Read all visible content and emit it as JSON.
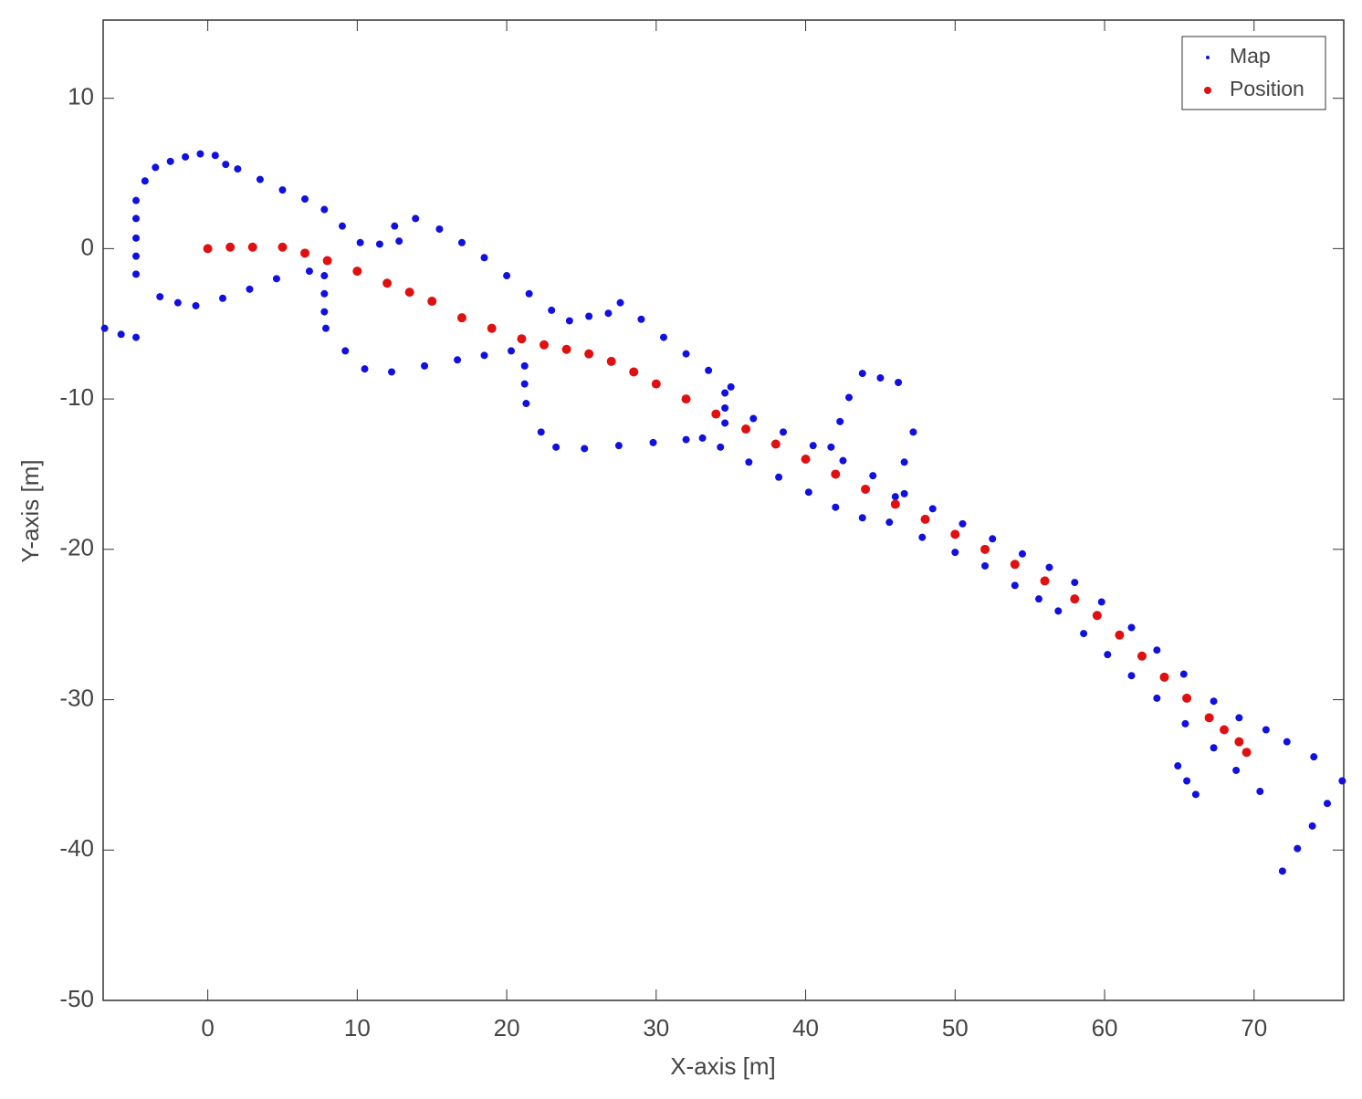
{
  "chart_data": {
    "type": "scatter",
    "x_label": "X-axis [m]",
    "y_label": "Y-axis [m]",
    "xlim": [
      -7,
      76
    ],
    "ylim": [
      -50,
      15.2
    ],
    "xticks": [
      0,
      10,
      20,
      30,
      40,
      50,
      60,
      70
    ],
    "yticks": [
      -50,
      -40,
      -30,
      -20,
      -10,
      0,
      10
    ],
    "grid": false,
    "legend": "top-right",
    "series": [
      {
        "name": "Map",
        "color": "#1010e0",
        "x": [
          -4.8,
          -4.8,
          -4.8,
          -4.8,
          -4.8,
          -4.2,
          -3.5,
          -2.5,
          -1.5,
          -0.5,
          0.5,
          1.2,
          2.0,
          3.5,
          5.0,
          6.5,
          7.8,
          9.0,
          10.2,
          11.5,
          12.8,
          12.5,
          13.9,
          15.5,
          17.0,
          18.5,
          20.0,
          21.5,
          23.0,
          24.2,
          25.5,
          26.8,
          27.6,
          29.0,
          30.5,
          32.0,
          33.5,
          35.0,
          36.5,
          38.5,
          40.5,
          42.5,
          44.5,
          46.6,
          48.5,
          50.5,
          52.5,
          54.5,
          56.3,
          58.0,
          59.8,
          61.8,
          63.5,
          65.3,
          67.3,
          69.0,
          70.8,
          72.2,
          74.0,
          -3.2,
          -2.0,
          -0.8,
          1.0,
          2.8,
          4.6,
          6.8,
          7.8,
          7.8,
          7.8,
          7.9,
          9.2,
          10.5,
          12.3,
          14.5,
          16.7,
          18.5,
          20.3,
          21.2,
          21.2,
          21.3,
          22.3,
          23.3,
          25.2,
          27.5,
          29.8,
          32.0,
          33.1,
          34.3,
          36.2,
          38.2,
          40.2,
          42.0,
          43.8,
          45.6,
          47.8,
          50.0,
          52.0,
          54.0,
          55.6,
          56.9,
          58.6,
          60.2,
          61.8,
          63.5,
          65.4,
          67.3,
          68.8,
          70.4,
          34.6,
          34.6,
          34.6,
          41.7,
          42.3,
          42.9,
          43.8,
          45.0,
          46.2,
          47.2,
          46.6,
          46.0,
          71.9,
          72.9,
          73.9,
          74.9,
          75.9,
          -6.9,
          -5.8,
          -4.8,
          64.9,
          65.5,
          66.1
        ],
        "values": [
          -1.7,
          -0.5,
          0.7,
          2.0,
          3.2,
          4.5,
          5.4,
          5.8,
          6.1,
          6.3,
          6.2,
          5.6,
          5.3,
          4.6,
          3.9,
          3.3,
          2.6,
          1.5,
          0.4,
          0.3,
          0.5,
          1.5,
          2.0,
          1.3,
          0.4,
          -0.6,
          -1.8,
          -3.0,
          -4.1,
          -4.8,
          -4.5,
          -4.3,
          -3.6,
          -4.7,
          -5.9,
          -7.0,
          -8.1,
          -9.2,
          -11.3,
          -12.2,
          -13.1,
          -14.1,
          -15.1,
          -16.3,
          -17.3,
          -18.3,
          -19.3,
          -20.3,
          -21.2,
          -22.2,
          -23.5,
          -25.2,
          -26.7,
          -28.3,
          -30.1,
          -31.2,
          -32.0,
          -32.8,
          -33.8,
          -3.2,
          -3.6,
          -3.8,
          -3.3,
          -2.7,
          -2.0,
          -1.5,
          -1.8,
          -3.0,
          -4.2,
          -5.3,
          -6.8,
          -8.0,
          -8.2,
          -7.8,
          -7.4,
          -7.1,
          -6.8,
          -7.8,
          -9.0,
          -10.3,
          -12.2,
          -13.2,
          -13.3,
          -13.1,
          -12.9,
          -12.7,
          -12.6,
          -13.2,
          -14.2,
          -15.2,
          -16.2,
          -17.2,
          -17.9,
          -18.2,
          -19.2,
          -20.2,
          -21.1,
          -22.4,
          -23.3,
          -24.1,
          -25.6,
          -27.0,
          -28.4,
          -29.9,
          -31.6,
          -33.2,
          -34.7,
          -36.1,
          -9.6,
          -10.6,
          -11.6,
          -13.2,
          -11.5,
          -9.9,
          -8.3,
          -8.6,
          -8.9,
          -12.2,
          -14.2,
          -16.5,
          -41.4,
          -39.9,
          -38.4,
          -36.9,
          -35.4,
          -5.3,
          -5.7,
          -5.9,
          -34.4,
          -35.4,
          -36.3
        ]
      },
      {
        "name": "Position",
        "color": "#e01010",
        "x": [
          0,
          1.5,
          3,
          5,
          6.5,
          8,
          10,
          12,
          13.5,
          15,
          17,
          19,
          21,
          22.5,
          24,
          25.5,
          27,
          28.5,
          30,
          32,
          34,
          36,
          38,
          40,
          42,
          44,
          46,
          48,
          50,
          52,
          54,
          56,
          58,
          59.5,
          61,
          62.5,
          64,
          65.5,
          67,
          68,
          69,
          69.5
        ],
        "values": [
          0,
          0.1,
          0.1,
          0.1,
          -0.3,
          -0.8,
          -1.5,
          -2.3,
          -2.9,
          -3.5,
          -4.6,
          -5.3,
          -6.0,
          -6.4,
          -6.7,
          -7.0,
          -7.5,
          -8.2,
          -9.0,
          -10.0,
          -11.0,
          -12.0,
          -13.0,
          -14.0,
          -15.0,
          -16.0,
          -17.0,
          -18.0,
          -19.0,
          -20.0,
          -21.0,
          -22.1,
          -23.3,
          -24.4,
          -25.7,
          -27.1,
          -28.5,
          -29.9,
          -31.2,
          -32.0,
          -32.8,
          -33.5
        ]
      }
    ]
  }
}
